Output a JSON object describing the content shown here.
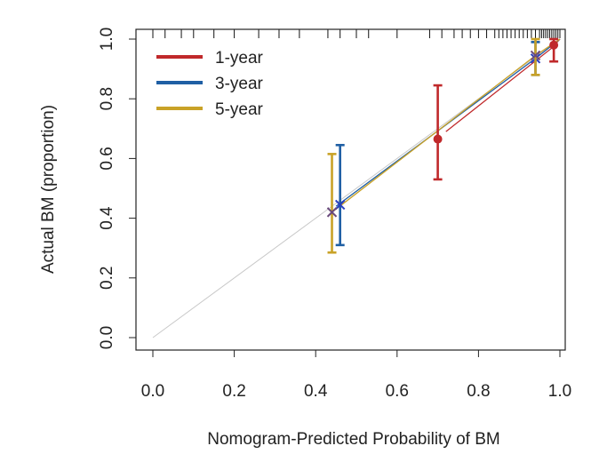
{
  "chart_data": {
    "type": "line",
    "title": "",
    "xlabel": "Nomogram-Predicted Probability of BM",
    "ylabel": "Actual BM (proportion)",
    "xlim": [
      0,
      1
    ],
    "ylim": [
      0,
      1
    ],
    "xticks": [
      "0.0",
      "0.2",
      "0.4",
      "0.6",
      "0.8",
      "1.0"
    ],
    "yticks": [
      "0.0",
      "0.2",
      "0.4",
      "0.6",
      "0.8",
      "1.0"
    ],
    "grid": false,
    "legend_position": "top-left",
    "reference_line": {
      "x": [
        0,
        1
      ],
      "y": [
        0,
        1
      ],
      "color": "#c8c8c8"
    },
    "series": [
      {
        "name": "1-year",
        "color": "#c0292b",
        "marker": "circle",
        "curve": {
          "x": [
            0.72,
            0.98,
            1.0
          ],
          "y": [
            0.69,
            0.97,
            1.0
          ]
        },
        "points": [
          {
            "x": 0.7,
            "y": 0.665,
            "lower": 0.53,
            "upper": 0.845
          },
          {
            "x": 0.985,
            "y": 0.98,
            "lower": 0.925,
            "upper": 1.0
          }
        ]
      },
      {
        "name": "3-year",
        "color": "#1f5fa4",
        "marker": "cross",
        "curve": {
          "x": [
            0.45,
            0.94,
            1.0
          ],
          "y": [
            0.44,
            0.935,
            1.0
          ]
        },
        "points": [
          {
            "x": 0.46,
            "y": 0.445,
            "lower": 0.31,
            "upper": 0.645
          },
          {
            "x": 0.94,
            "y": 0.935,
            "lower": 0.88,
            "upper": 0.99
          }
        ]
      },
      {
        "name": "5-year",
        "color": "#c9a227",
        "marker": "cross",
        "curve": {
          "x": [
            0.44,
            0.94,
            1.0
          ],
          "y": [
            0.42,
            0.945,
            1.0
          ]
        },
        "points": [
          {
            "x": 0.44,
            "y": 0.42,
            "lower": 0.285,
            "upper": 0.615
          },
          {
            "x": 0.94,
            "y": 0.945,
            "lower": 0.88,
            "upper": 1.0
          }
        ]
      }
    ],
    "rug": [
      0.0,
      0.03,
      0.07,
      0.1,
      0.15,
      0.2,
      0.26,
      0.31,
      0.36,
      0.43,
      0.46,
      0.5,
      0.53,
      0.6,
      0.68,
      0.71,
      0.74,
      0.76,
      0.78,
      0.8,
      0.82,
      0.84,
      0.85,
      0.86,
      0.87,
      0.88,
      0.89,
      0.9,
      0.91,
      0.92,
      0.93,
      0.94,
      0.95,
      0.955,
      0.96,
      0.965,
      0.97,
      0.975,
      0.98,
      0.985,
      0.99,
      0.995,
      1.0
    ]
  }
}
